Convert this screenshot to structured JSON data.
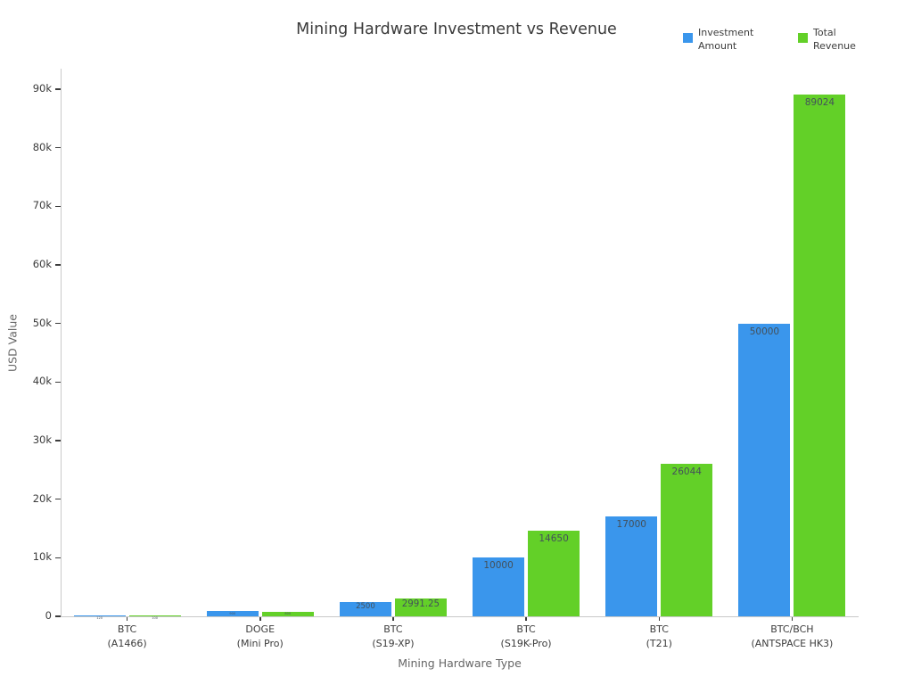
{
  "chart_data": {
    "type": "bar",
    "title": "Mining Hardware Investment vs Revenue",
    "xlabel": "Mining Hardware Type",
    "ylabel": "USD Value",
    "ylim": [
      0,
      93500
    ],
    "grid": false,
    "legend_position": "top-right",
    "categories": [
      [
        "BTC",
        "(A1466)"
      ],
      [
        "DOGE",
        "(Mini Pro)"
      ],
      [
        "BTC",
        "(S19-XP)"
      ],
      [
        "BTC",
        "(S19K-Pro)"
      ],
      [
        "BTC",
        "(T21)"
      ],
      [
        "BTC/BCH",
        "(ANTSPACE HK3)"
      ]
    ],
    "series": [
      {
        "name": "Investment Amount",
        "legend_lines": "Investment\nAmount",
        "color": "#3a96ec",
        "values": [
          120,
          900,
          2500,
          10000,
          17000,
          50000
        ],
        "labels": [
          "120",
          "900",
          "2500",
          "10000",
          "17000",
          "50000"
        ]
      },
      {
        "name": "Total Revenue",
        "legend_lines": "Total\nRevenue",
        "color": "#63d028",
        "values": [
          100,
          800,
          2991.25,
          14650,
          26044,
          89024
        ],
        "labels": [
          "100",
          "800",
          "2991.25",
          "14650",
          "26044",
          "89024"
        ]
      }
    ],
    "yticks": [
      0,
      10000,
      20000,
      30000,
      40000,
      50000,
      60000,
      70000,
      80000,
      90000
    ],
    "ytick_labels": [
      "0",
      "10k",
      "20k",
      "30k",
      "40k",
      "50k",
      "60k",
      "70k",
      "80k",
      "90k"
    ]
  }
}
